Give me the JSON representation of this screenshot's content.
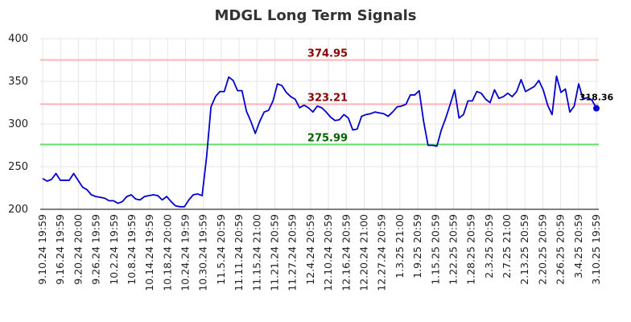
{
  "chart_data": {
    "type": "line",
    "title": "MDGL Long Term Signals",
    "xlabel": "",
    "ylabel": "",
    "ylim": [
      200,
      400
    ],
    "yticks": [
      200,
      250,
      300,
      350,
      400
    ],
    "grid": true,
    "x_tick_labels": [
      "9.10.24 19:59",
      "9.16.24 19:59",
      "9.20.24 20:00",
      "9.26.24 19:59",
      "10.2.24 19:59",
      "10.8.24 19:59",
      "10.14.24 19:59",
      "10.18.24 20:00",
      "10.24.24 19:59",
      "10.30.24 19:59",
      "11.5.24 20:59",
      "11.11.24 20:59",
      "11.15.24 21:00",
      "11.21.24 20:59",
      "11.27.24 20:59",
      "12.4.24 20:59",
      "12.10.24 20:59",
      "12.16.24 20:59",
      "12.20.24 21:00",
      "12.27.24 20:59",
      "1.3.25 21:00",
      "1.9.25 20:59",
      "1.15.25 20:59",
      "1.22.25 20:59",
      "1.28.25 20:59",
      "2.3.25 20:59",
      "2.7.25 21:00",
      "2.13.25 20:59",
      "2.20.25 20:59",
      "2.26.25 20:59",
      "3.4.25 20:59",
      "3.10.25 19:59"
    ],
    "series": [
      {
        "color": "#0000cc",
        "values": [
          236,
          233,
          235,
          242,
          234,
          234,
          234,
          242,
          234,
          226,
          223,
          217,
          215,
          214,
          213,
          210,
          210,
          207,
          209,
          215,
          217,
          212,
          211,
          215,
          216,
          217,
          216,
          211,
          215,
          209,
          204,
          203,
          203,
          211,
          217,
          218,
          216,
          261,
          320,
          332,
          338,
          338,
          355,
          351,
          339,
          339,
          315,
          303,
          289,
          303,
          314,
          316,
          327,
          347,
          345,
          337,
          332,
          329,
          319,
          322,
          319,
          314,
          321,
          319,
          314,
          308,
          304,
          305,
          311,
          307,
          293,
          294,
          309,
          311,
          312,
          314,
          313,
          312,
          309,
          314,
          320,
          321,
          323,
          334,
          334,
          339,
          303,
          275,
          275,
          274,
          293,
          307,
          323,
          340,
          307,
          311,
          327,
          327,
          338,
          336,
          329,
          325,
          340,
          330,
          332,
          336,
          332,
          338,
          352,
          338,
          341,
          344,
          351,
          340,
          322,
          311,
          356,
          337,
          341,
          314,
          321,
          347,
          329,
          331,
          328,
          318.36
        ]
      }
    ],
    "levels": [
      {
        "label": "374.95",
        "value": 374.95,
        "line_color": "#ffb3b3",
        "label_color": "#8b0000"
      },
      {
        "label": "323.21",
        "value": 323.21,
        "line_color": "#ffb3b3",
        "label_color": "#8b0000"
      },
      {
        "label": "275.99",
        "value": 275.99,
        "line_color": "#66dd66",
        "label_color": "#006400"
      }
    ],
    "last_value_label": "318.36"
  }
}
